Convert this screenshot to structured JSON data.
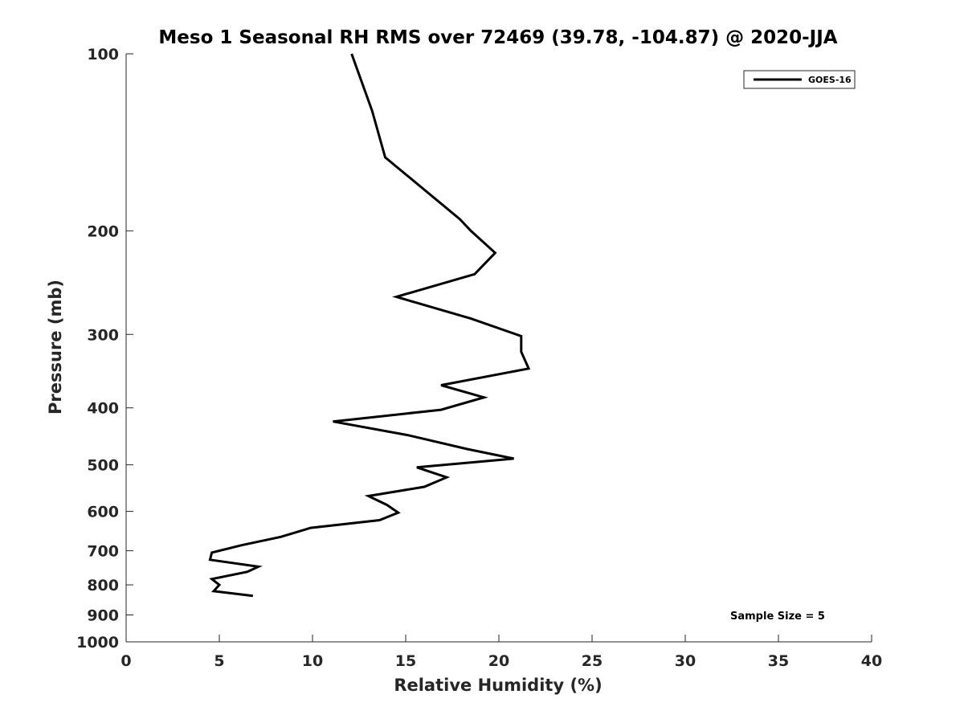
{
  "chart_data": {
    "type": "line",
    "title": "Meso 1 Seasonal RH RMS over 72469 (39.78, -104.87) @ 2020-JJA",
    "xlabel": "Relative Humidity (%)",
    "ylabel": "Pressure (mb)",
    "xlim": [
      0,
      40
    ],
    "ylim": [
      100,
      1000
    ],
    "y_scale": "log",
    "y_inverted": true,
    "grid": false,
    "legend_position": "top-right",
    "x_ticks": [
      0,
      5,
      10,
      15,
      20,
      25,
      30,
      35,
      40
    ],
    "y_ticks": [
      100,
      200,
      300,
      400,
      500,
      600,
      700,
      800,
      900,
      1000
    ],
    "annotation": "Sample Size = 5",
    "series": [
      {
        "name": "GOES-16",
        "color": "#000000",
        "points": [
          {
            "x": 12.1,
            "y": 100
          },
          {
            "x": 13.2,
            "y": 125
          },
          {
            "x": 13.9,
            "y": 150
          },
          {
            "x": 17.9,
            "y": 191
          },
          {
            "x": 18.5,
            "y": 200
          },
          {
            "x": 19.8,
            "y": 218
          },
          {
            "x": 18.7,
            "y": 237
          },
          {
            "x": 14.5,
            "y": 259
          },
          {
            "x": 18.5,
            "y": 282
          },
          {
            "x": 21.2,
            "y": 302
          },
          {
            "x": 21.2,
            "y": 321
          },
          {
            "x": 21.6,
            "y": 343
          },
          {
            "x": 16.9,
            "y": 366
          },
          {
            "x": 19.2,
            "y": 384
          },
          {
            "x": 16.9,
            "y": 403
          },
          {
            "x": 11.1,
            "y": 422
          },
          {
            "x": 15.1,
            "y": 445
          },
          {
            "x": 18.3,
            "y": 470
          },
          {
            "x": 20.8,
            "y": 488
          },
          {
            "x": 15.6,
            "y": 505
          },
          {
            "x": 17.2,
            "y": 525
          },
          {
            "x": 16.0,
            "y": 545
          },
          {
            "x": 13.0,
            "y": 565
          },
          {
            "x": 14.0,
            "y": 585
          },
          {
            "x": 14.6,
            "y": 603
          },
          {
            "x": 13.6,
            "y": 621
          },
          {
            "x": 9.9,
            "y": 640
          },
          {
            "x": 8.3,
            "y": 663
          },
          {
            "x": 6.2,
            "y": 685
          },
          {
            "x": 4.6,
            "y": 705
          },
          {
            "x": 4.5,
            "y": 725
          },
          {
            "x": 7.1,
            "y": 745
          },
          {
            "x": 6.5,
            "y": 760
          },
          {
            "x": 4.6,
            "y": 782
          },
          {
            "x": 5.0,
            "y": 800
          },
          {
            "x": 4.7,
            "y": 820
          },
          {
            "x": 6.8,
            "y": 835
          }
        ]
      }
    ]
  }
}
